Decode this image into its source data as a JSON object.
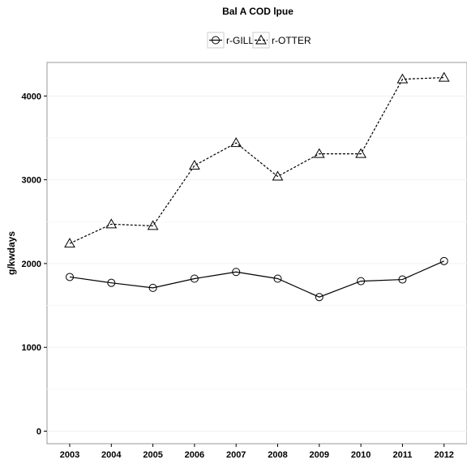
{
  "chart_data": {
    "type": "line",
    "title": "Bal A COD lpue",
    "xlabel": "",
    "ylabel": "g/kwdays",
    "categories": [
      "2003",
      "2004",
      "2005",
      "2006",
      "2007",
      "2008",
      "2009",
      "2010",
      "2011",
      "2012"
    ],
    "y_ticks": [
      "0",
      "1000",
      "2000",
      "3000",
      "4000"
    ],
    "ylim": [
      -150,
      4400
    ],
    "grid": true,
    "legend_position": "top",
    "series": [
      {
        "name": "r-GILL",
        "marker": "circle",
        "line_style": "solid",
        "values": [
          1840,
          1770,
          1710,
          1820,
          1900,
          1820,
          1600,
          1790,
          1810,
          2030
        ]
      },
      {
        "name": "r-OTTER",
        "marker": "triangle",
        "line_style": "dashed",
        "values": [
          2240,
          2470,
          2450,
          3170,
          3440,
          3040,
          3310,
          3310,
          4200,
          4220
        ]
      }
    ]
  }
}
